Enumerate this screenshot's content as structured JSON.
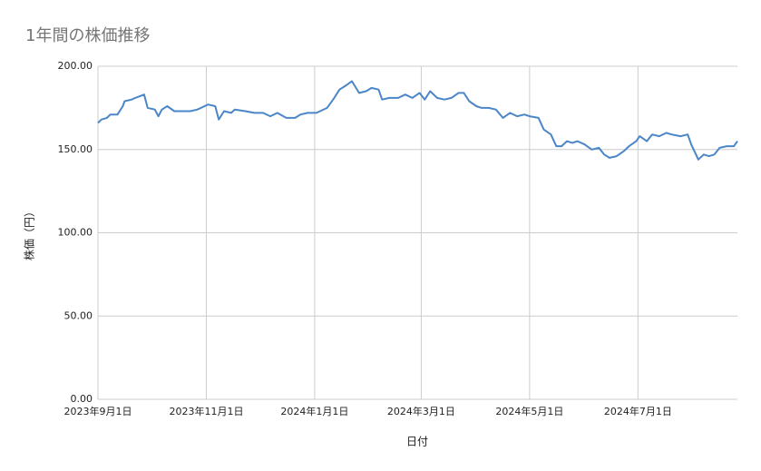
{
  "chart_data": {
    "type": "line",
    "title": "1年間の株価推移",
    "x_label": "日付",
    "y_label": "株価（円）",
    "x": [
      "2023-09-01",
      "2023-09-03",
      "2023-09-06",
      "2023-09-08",
      "2023-09-12",
      "2023-09-15",
      "2023-09-16",
      "2023-09-20",
      "2023-09-22",
      "2023-09-27",
      "2023-09-29",
      "2023-10-03",
      "2023-10-05",
      "2023-10-07",
      "2023-10-10",
      "2023-10-14",
      "2023-10-18",
      "2023-10-23",
      "2023-10-27",
      "2023-10-31",
      "2023-11-02",
      "2023-11-06",
      "2023-11-08",
      "2023-11-11",
      "2023-11-15",
      "2023-11-17",
      "2023-11-23",
      "2023-11-28",
      "2023-12-03",
      "2023-12-07",
      "2023-12-11",
      "2023-12-16",
      "2023-12-21",
      "2023-12-24",
      "2023-12-28",
      "2024-01-02",
      "2024-01-08",
      "2024-01-12",
      "2024-01-15",
      "2024-01-18",
      "2024-01-22",
      "2024-01-26",
      "2024-01-30",
      "2024-02-02",
      "2024-02-06",
      "2024-02-08",
      "2024-02-12",
      "2024-02-17",
      "2024-02-21",
      "2024-02-25",
      "2024-02-29",
      "2024-03-03",
      "2024-03-06",
      "2024-03-10",
      "2024-03-14",
      "2024-03-18",
      "2024-03-22",
      "2024-03-25",
      "2024-03-28",
      "2024-04-01",
      "2024-04-04",
      "2024-04-08",
      "2024-04-12",
      "2024-04-16",
      "2024-04-20",
      "2024-04-24",
      "2024-04-28",
      "2024-05-01",
      "2024-05-06",
      "2024-05-09",
      "2024-05-13",
      "2024-05-16",
      "2024-05-19",
      "2024-05-22",
      "2024-05-25",
      "2024-05-28",
      "2024-06-01",
      "2024-06-05",
      "2024-06-09",
      "2024-06-12",
      "2024-06-15",
      "2024-06-19",
      "2024-06-23",
      "2024-06-26",
      "2024-06-30",
      "2024-07-02",
      "2024-07-06",
      "2024-07-09",
      "2024-07-13",
      "2024-07-17",
      "2024-07-20",
      "2024-07-25",
      "2024-07-29",
      "2024-07-31",
      "2024-08-04",
      "2024-08-07",
      "2024-08-10",
      "2024-08-13",
      "2024-08-16",
      "2024-08-20",
      "2024-08-24",
      "2024-08-26"
    ],
    "series": [
      {
        "name": "株価",
        "color": "#4a86c8",
        "values": [
          166,
          168,
          169,
          171,
          171,
          176,
          179,
          180,
          181,
          183,
          175,
          174,
          170,
          174,
          176,
          173,
          173,
          173,
          174,
          176,
          177,
          176,
          168,
          173,
          172,
          174,
          173,
          172,
          172,
          170,
          172,
          169,
          169,
          171,
          172,
          172,
          175,
          181,
          186,
          188,
          191,
          184,
          185,
          187,
          186,
          180,
          181,
          181,
          183,
          181,
          184,
          180,
          185,
          181,
          180,
          181,
          184,
          184,
          179,
          176,
          175,
          175,
          174,
          169,
          172,
          170,
          171,
          170,
          169,
          162,
          159,
          152,
          152,
          155,
          154,
          155,
          153,
          150,
          151,
          147,
          145,
          146,
          149,
          152,
          155,
          158,
          155,
          159,
          158,
          160,
          159,
          158,
          159,
          153,
          144,
          147,
          146,
          147,
          151,
          152,
          152,
          155
        ]
      }
    ],
    "xlim": [
      "2023-09-01",
      "2024-08-26"
    ],
    "xticks": [
      {
        "value": "2023-09-01",
        "label": "2023年9月1日"
      },
      {
        "value": "2023-11-01",
        "label": "2023年11月1日"
      },
      {
        "value": "2024-01-01",
        "label": "2024年1月1日"
      },
      {
        "value": "2024-03-01",
        "label": "2024年3月1日"
      },
      {
        "value": "2024-05-01",
        "label": "2024年5月1日"
      },
      {
        "value": "2024-07-01",
        "label": "2024年7月1日"
      }
    ],
    "ylim": [
      0,
      200
    ],
    "yticks": [
      {
        "value": 0,
        "label": "0.00"
      },
      {
        "value": 50,
        "label": "50.00"
      },
      {
        "value": 100,
        "label": "100.00"
      },
      {
        "value": 150,
        "label": "150.00"
      },
      {
        "value": 200,
        "label": "200.00"
      }
    ],
    "grid": true
  }
}
